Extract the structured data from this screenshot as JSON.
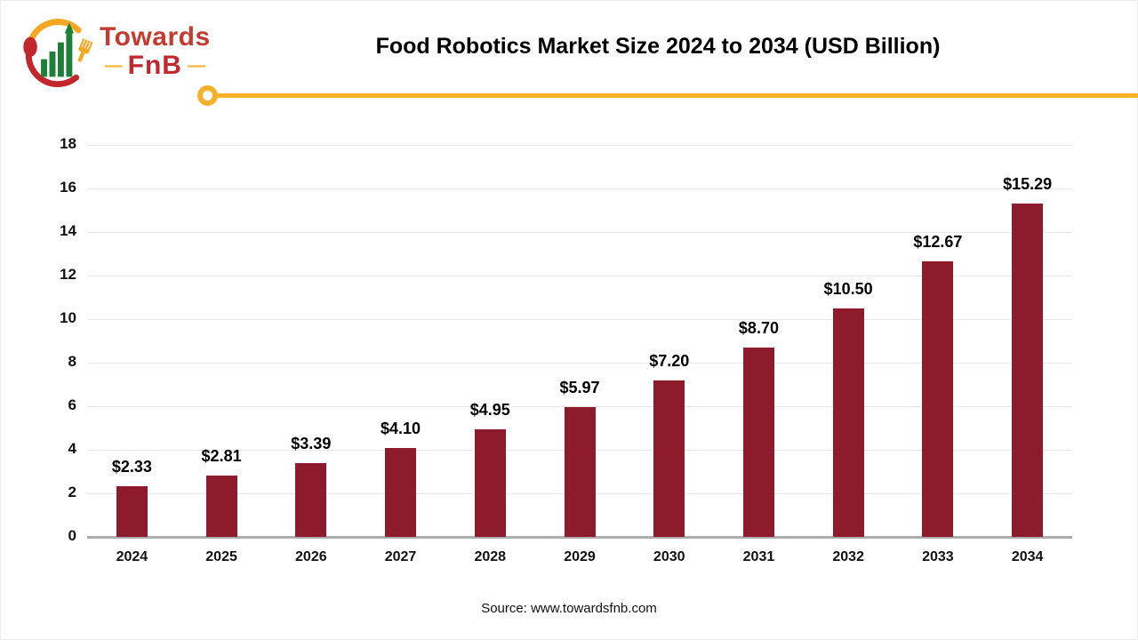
{
  "page": {
    "title": "Food Robotics Market Size 2024 to 2034 (USD Billion)",
    "source": "Source: www.towardsfnb.com",
    "logo": {
      "brand_top": "Towards",
      "brand_bottom": "FnB",
      "dash_left": "—",
      "dash_right": "—"
    },
    "colors": {
      "bar": "#8E1B2B",
      "grid": "#E7E7E7",
      "axis": "#ADADAD",
      "accent_gold": "#F5B228",
      "logo_red_top": "#C53A2F",
      "logo_red_bottom": "#C2272D",
      "logo_green": "#1E8038"
    }
  },
  "chart_data": {
    "type": "bar",
    "title": "Food Robotics Market Size 2024 to 2034 (USD Billion)",
    "categories": [
      "2024",
      "2025",
      "2026",
      "2027",
      "2028",
      "2029",
      "2030",
      "2031",
      "2032",
      "2033",
      "2034"
    ],
    "values": [
      2.33,
      2.81,
      3.39,
      4.1,
      4.95,
      5.97,
      7.2,
      8.7,
      10.5,
      12.67,
      15.29
    ],
    "labels": [
      "$2.33",
      "$2.81",
      "$3.39",
      "$4.10",
      "$4.95",
      "$5.97",
      "$7.20",
      "$8.70",
      "$10.50",
      "$12.67",
      "$15.29"
    ],
    "xlabel": "",
    "ylabel": "",
    "ylim": [
      0,
      18
    ],
    "y_ticks": [
      0,
      2,
      4,
      6,
      8,
      10,
      12,
      14,
      16,
      18
    ],
    "grid": true,
    "legend": "none",
    "bar_color": "#8E1B2B"
  }
}
